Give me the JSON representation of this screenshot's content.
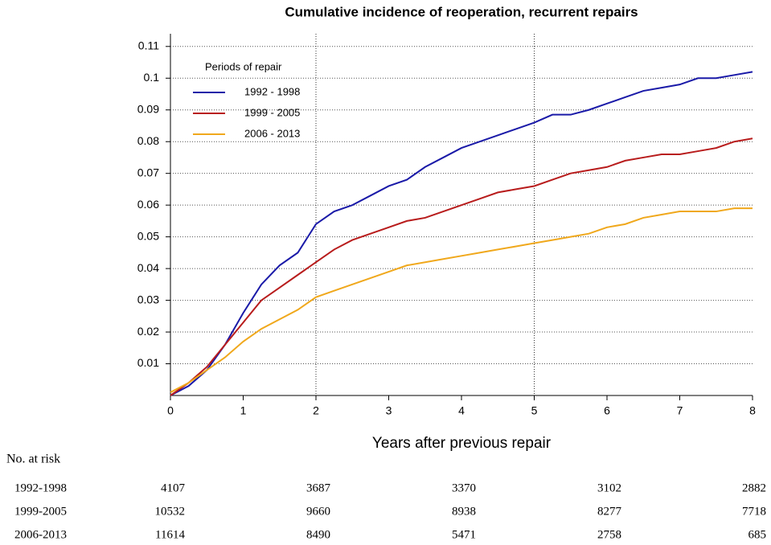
{
  "chart_data": {
    "type": "line",
    "title": "Cumulative incidence of reoperation, recurrent repairs",
    "xlabel": "Years after previous repair",
    "x": [
      0,
      0.25,
      0.5,
      0.75,
      1,
      1.25,
      1.5,
      1.75,
      2,
      2.25,
      2.5,
      2.75,
      3,
      3.25,
      3.5,
      3.75,
      4,
      4.25,
      4.5,
      4.75,
      5,
      5.25,
      5.5,
      5.75,
      6,
      6.25,
      6.5,
      6.75,
      7,
      7.25,
      7.5,
      7.75,
      8
    ],
    "series": [
      {
        "name": "1992 - 1998",
        "color": "#1a1aa8",
        "values": [
          0,
          0.003,
          0.008,
          0.016,
          0.026,
          0.035,
          0.041,
          0.045,
          0.054,
          0.058,
          0.06,
          0.063,
          0.066,
          0.068,
          0.072,
          0.075,
          0.078,
          0.08,
          0.082,
          0.084,
          0.086,
          0.0885,
          0.0885,
          0.09,
          0.092,
          0.094,
          0.096,
          0.097,
          0.098,
          0.1,
          0.1,
          0.101,
          0.102
        ]
      },
      {
        "name": "1999 - 2005",
        "color": "#b81c1c",
        "values": [
          0,
          0.004,
          0.009,
          0.016,
          0.023,
          0.03,
          0.034,
          0.038,
          0.042,
          0.046,
          0.049,
          0.051,
          0.053,
          0.055,
          0.056,
          0.058,
          0.06,
          0.062,
          0.064,
          0.065,
          0.066,
          0.068,
          0.07,
          0.071,
          0.072,
          0.074,
          0.075,
          0.076,
          0.076,
          0.077,
          0.078,
          0.08,
          0.081
        ]
      },
      {
        "name": "2006 - 2013",
        "color": "#f0a81c",
        "values": [
          0.001,
          0.004,
          0.008,
          0.012,
          0.017,
          0.021,
          0.024,
          0.027,
          0.031,
          0.033,
          0.035,
          0.037,
          0.039,
          0.041,
          0.042,
          0.043,
          0.044,
          0.045,
          0.046,
          0.047,
          0.048,
          0.049,
          0.05,
          0.051,
          0.053,
          0.054,
          0.056,
          0.057,
          0.058,
          0.058,
          0.058,
          0.059,
          0.059
        ]
      }
    ],
    "legend_title": "Periods of repair",
    "legend": "top-left",
    "xlim": [
      0,
      8
    ],
    "xticks": [
      0,
      1,
      2,
      3,
      4,
      5,
      6,
      7,
      8
    ],
    "ylim": [
      0,
      0.114
    ],
    "yticks": [
      0.01,
      0.02,
      0.03,
      0.04,
      0.05,
      0.06,
      0.07,
      0.08,
      0.09,
      0.1,
      0.11
    ],
    "grid": true,
    "x_reference_lines": [
      2,
      5
    ],
    "risk_table": {
      "title": "No. at risk",
      "x": [
        0,
        2,
        4,
        6,
        8
      ],
      "rows": [
        {
          "label": "1992-1998",
          "values": [
            4107,
            3687,
            3370,
            3102,
            2882
          ]
        },
        {
          "label": "1999-2005",
          "values": [
            10532,
            9660,
            8938,
            8277,
            7718
          ]
        },
        {
          "label": "2006-2013",
          "values": [
            11614,
            8490,
            5471,
            2758,
            685
          ]
        }
      ]
    }
  }
}
